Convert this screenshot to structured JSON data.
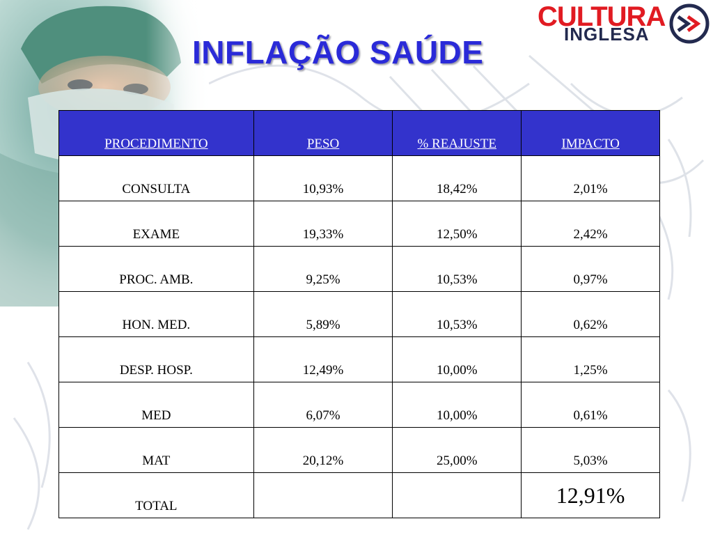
{
  "title": "INFLAÇÃO SAÚDE",
  "logo": {
    "line1": "CULTURA",
    "line2": "INGLESA"
  },
  "table": {
    "headers": [
      "PROCEDIMENTO",
      "PESO",
      "% REAJUSTE",
      "IMPACTO"
    ],
    "rows": [
      [
        "CONSULTA",
        "10,93%",
        "18,42%",
        "2,01%"
      ],
      [
        "EXAME",
        "19,33%",
        "12,50%",
        "2,42%"
      ],
      [
        "PROC. AMB.",
        "9,25%",
        "10,53%",
        "0,97%"
      ],
      [
        "HON. MED.",
        "5,89%",
        "10,53%",
        "0,62%"
      ],
      [
        "DESP. HOSP.",
        "12,49%",
        "10,00%",
        "1,25%"
      ],
      [
        "MED",
        "6,07%",
        "10,00%",
        "0,61%"
      ],
      [
        "MAT",
        "20,12%",
        "25,00%",
        "5,03%"
      ]
    ],
    "total": {
      "label": "TOTAL",
      "peso": "",
      "reajuste": "",
      "impacto": "12,91%"
    }
  },
  "colors": {
    "title": "#2a2ad8",
    "header_bg": "#3333cc",
    "logo_red": "#e11b22",
    "logo_navy": "#232a4f"
  }
}
